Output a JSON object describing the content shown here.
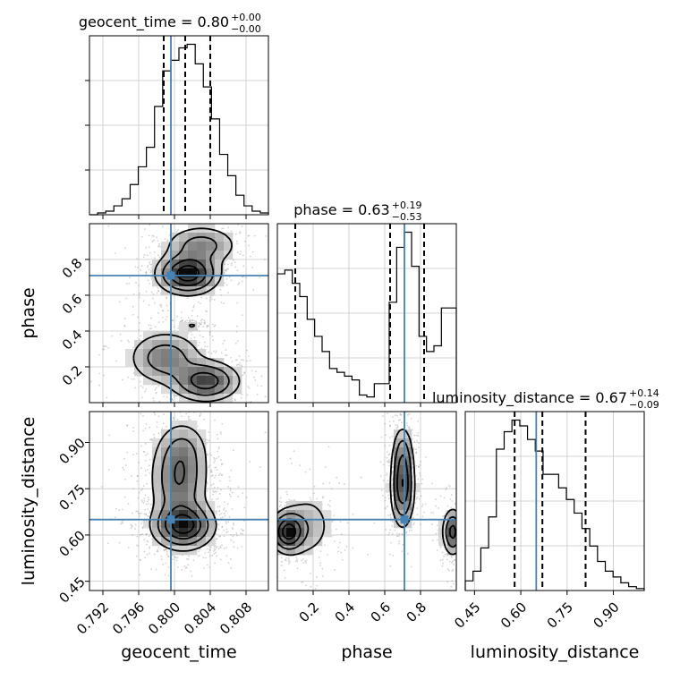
{
  "chart_data": {
    "type": "corner",
    "parameters": [
      {
        "name": "geocent_time",
        "label": "geocent_time",
        "title_main": "geocent_time = 0.80",
        "err_plus": "+0.00",
        "err_minus": "−0.00",
        "range": [
          0.7905,
          0.8105
        ],
        "ticks": [
          0.792,
          0.796,
          0.8,
          0.804,
          0.808
        ],
        "tick_labels": [
          "0.792",
          "0.796",
          "0.800",
          "0.804",
          "0.808"
        ],
        "median": 0.8012,
        "quantiles": [
          0.7988,
          0.8012,
          0.804
        ],
        "truth": 0.7996,
        "hist": [
          0,
          0.01,
          0.02,
          0.05,
          0.09,
          0.17,
          0.27,
          0.38,
          0.61,
          0.81,
          0.87,
          0.94,
          0.96,
          0.85,
          0.72,
          0.54,
          0.34,
          0.22,
          0.11,
          0.05,
          0.02,
          0.01
        ]
      },
      {
        "name": "phase",
        "label": "phase",
        "title_main": "phase = 0.63",
        "err_plus": "+0.19",
        "err_minus": "−0.53",
        "range": [
          0.0,
          1.0
        ],
        "ticks": [
          0.2,
          0.4,
          0.6,
          0.8
        ],
        "tick_labels": [
          "0.2",
          "0.4",
          "0.6",
          "0.8"
        ],
        "median": 0.63,
        "quantiles": [
          0.1,
          0.63,
          0.82
        ],
        "truth": 0.71,
        "hist": [
          0.68,
          0.7,
          0.63,
          0.56,
          0.44,
          0.35,
          0.27,
          0.18,
          0.16,
          0.14,
          0.12,
          0.04,
          0.03,
          0.1,
          0.1,
          0.53,
          0.82,
          0.9,
          0.72,
          0.35,
          0.27,
          0.3,
          0.5,
          0.5
        ]
      },
      {
        "name": "luminosity_distance",
        "label": "luminosity_distance",
        "title_main": "luminosity_distance = 0.67",
        "err_plus": "+0.14",
        "err_minus": "−0.09",
        "range": [
          0.42,
          1.0
        ],
        "ticks": [
          0.45,
          0.6,
          0.75,
          0.9
        ],
        "tick_labels": [
          "0.45",
          "0.60",
          "0.75",
          "0.90"
        ],
        "median": 0.67,
        "quantiles": [
          0.58,
          0.67,
          0.81
        ],
        "truth": 0.65,
        "hist": [
          0.05,
          0.1,
          0.22,
          0.38,
          0.73,
          0.82,
          0.88,
          0.85,
          0.78,
          0.72,
          0.6,
          0.6,
          0.53,
          0.47,
          0.4,
          0.32,
          0.23,
          0.15,
          0.1,
          0.07,
          0.04,
          0.02,
          0.01
        ]
      }
    ],
    "blobs": {
      "phase_vs_geocent_time": [
        {
          "x": 0.8015,
          "y": 0.72,
          "sx": 0.0018,
          "sy": 0.06,
          "w": 1.0
        },
        {
          "x": 0.803,
          "y": 0.88,
          "sx": 0.0022,
          "sy": 0.06,
          "w": 0.4
        },
        {
          "x": 0.8035,
          "y": 0.12,
          "sx": 0.002,
          "sy": 0.06,
          "w": 0.7
        },
        {
          "x": 0.799,
          "y": 0.25,
          "sx": 0.0022,
          "sy": 0.08,
          "w": 0.45
        },
        {
          "x": 0.802,
          "y": 0.43,
          "sx": 0.0008,
          "sy": 0.02,
          "w": 0.12
        }
      ],
      "luminosity_distance_vs_geocent_time": [
        {
          "x": 0.801,
          "y": 0.63,
          "sx": 0.0018,
          "sy": 0.04,
          "w": 1.0
        },
        {
          "x": 0.8005,
          "y": 0.78,
          "sx": 0.0017,
          "sy": 0.08,
          "w": 0.6
        },
        {
          "x": 0.801,
          "y": 0.88,
          "sx": 0.0015,
          "sy": 0.05,
          "w": 0.22
        }
      ],
      "luminosity_distance_vs_phase": [
        {
          "x": 0.06,
          "y": 0.61,
          "sx": 0.05,
          "sy": 0.035,
          "w": 1.0
        },
        {
          "x": 0.17,
          "y": 0.63,
          "sx": 0.08,
          "sy": 0.06,
          "w": 0.25
        },
        {
          "x": 0.7,
          "y": 0.76,
          "sx": 0.035,
          "sy": 0.07,
          "w": 0.85
        },
        {
          "x": 0.7,
          "y": 0.87,
          "sx": 0.03,
          "sy": 0.05,
          "w": 0.3
        },
        {
          "x": 0.98,
          "y": 0.61,
          "sx": 0.03,
          "sy": 0.04,
          "w": 0.7
        }
      ]
    }
  }
}
